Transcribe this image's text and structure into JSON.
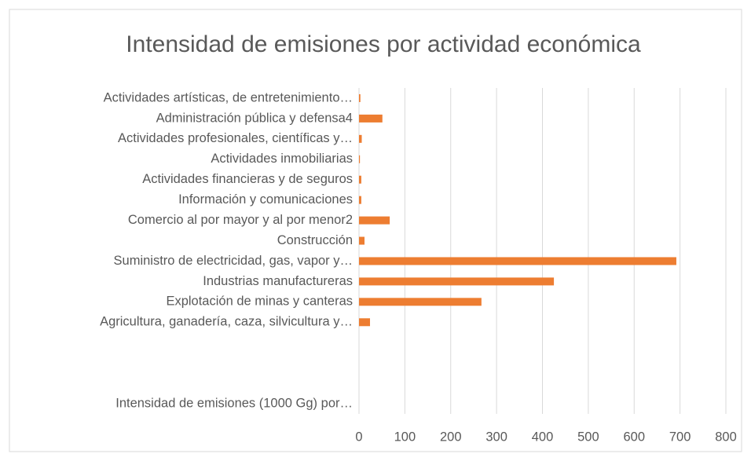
{
  "chart_data": {
    "type": "bar",
    "orientation": "horizontal",
    "title": "Intensidad de emisiones por actividad económica",
    "categories": [
      "Intensidad de emisiones   (1000 Gg) por…",
      null,
      null,
      null,
      "Agricultura, ganadería, caza, silvicultura y…",
      "Explotación de minas y canteras",
      "Industrias manufactureras",
      "Suministro de electricidad, gas, vapor y…",
      "Construcción",
      "Comercio al por mayor y al por menor2",
      "Información y comunicaciones",
      "Actividades financieras y de seguros",
      "Actividades inmobiliarias",
      "Actividades profesionales, científicas y…",
      "Administración pública y defensa4",
      "Actividades artísticas, de entretenimiento…"
    ],
    "values": [
      null,
      null,
      null,
      null,
      24,
      267,
      425,
      692,
      12,
      67,
      5,
      5,
      2,
      6,
      51,
      3
    ],
    "color": "#ed7d31",
    "xlim": [
      0,
      800
    ],
    "xticks": [
      0,
      100,
      200,
      300,
      400,
      500,
      600,
      700,
      800
    ],
    "grid": true
  }
}
